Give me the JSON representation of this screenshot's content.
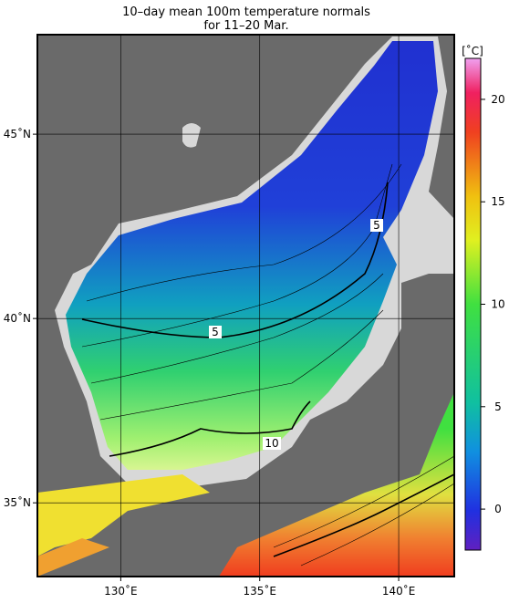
{
  "map": {
    "title": [
      "10–day mean 100m temperature normals",
      "for 11–20 Mar."
    ],
    "xlim": [
      127,
      142
    ],
    "ylim": [
      33,
      47.7
    ],
    "xticks": [
      {
        "value": 130,
        "label": "130˚E"
      },
      {
        "value": 135,
        "label": "135˚E"
      },
      {
        "value": 140,
        "label": "140˚E"
      }
    ],
    "yticks": [
      {
        "value": 35,
        "label": "35˚N"
      },
      {
        "value": 40,
        "label": "40˚N"
      },
      {
        "value": 45,
        "label": "45˚N"
      }
    ],
    "contour_labels": [
      5,
      5,
      10
    ]
  },
  "colorbar": {
    "unit": "[˚C]",
    "lim": [
      -2,
      22
    ],
    "ticks": [
      0,
      5,
      10,
      15,
      20
    ]
  }
}
